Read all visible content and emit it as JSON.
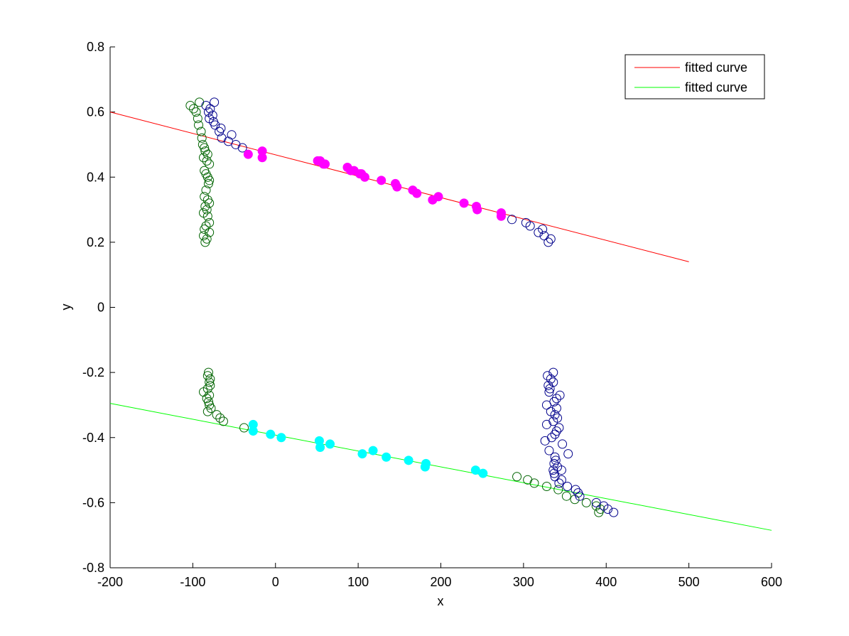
{
  "chart_data": {
    "type": "scatter",
    "title": "",
    "xlabel": "x",
    "ylabel": "y",
    "xlim": [
      -200,
      600
    ],
    "ylim": [
      -0.8,
      0.8
    ],
    "xticks": [
      -200,
      -100,
      0,
      100,
      200,
      300,
      400,
      500,
      600
    ],
    "xtick_labels": [
      "-200",
      "-100",
      "0",
      "100",
      "200",
      "300",
      "400",
      "500",
      "600"
    ],
    "yticks": [
      -0.8,
      -0.6,
      -0.4,
      -0.2,
      0,
      0.2,
      0.4,
      0.6,
      0.8
    ],
    "ytick_labels": [
      "-0.8",
      "-0.6",
      "-0.4",
      "-0.2",
      "0",
      "0.2",
      "0.4",
      "0.6",
      "0.8"
    ],
    "grid": false,
    "legend": {
      "position": "top-right",
      "entries": [
        {
          "label": "fitted curve",
          "color": "#ff0000"
        },
        {
          "label": "fitted curve",
          "color": "#00ff00"
        }
      ]
    },
    "lines": [
      {
        "name": "fitted curve",
        "color": "#ff0000",
        "x": [
          -200,
          500
        ],
        "y": [
          0.6,
          0.14
        ]
      },
      {
        "name": "fitted curve",
        "color": "#00ff00",
        "x": [
          -200,
          600
        ],
        "y": [
          -0.295,
          -0.685
        ]
      }
    ],
    "series": [
      {
        "marker": "open-circle",
        "color": "#006400",
        "points": [
          [
            -103,
            0.62
          ],
          [
            -99,
            0.61
          ],
          [
            -96,
            0.6
          ],
          [
            -94,
            0.58
          ],
          [
            -93,
            0.56
          ],
          [
            -92,
            0.63
          ],
          [
            -90,
            0.54
          ],
          [
            -89,
            0.52
          ],
          [
            -88,
            0.5
          ],
          [
            -86,
            0.49
          ],
          [
            -85,
            0.48
          ],
          [
            -82,
            0.47
          ],
          [
            -87,
            0.46
          ],
          [
            -83,
            0.45
          ],
          [
            -80,
            0.44
          ],
          [
            -86,
            0.42
          ],
          [
            -84,
            0.41
          ],
          [
            -82,
            0.4
          ],
          [
            -80,
            0.39
          ],
          [
            -81,
            0.38
          ],
          [
            -84,
            0.36
          ],
          [
            -86,
            0.34
          ],
          [
            -82,
            0.33
          ],
          [
            -80,
            0.32
          ],
          [
            -85,
            0.31
          ],
          [
            -83,
            0.3
          ],
          [
            -87,
            0.29
          ],
          [
            -82,
            0.28
          ],
          [
            -80,
            0.26
          ],
          [
            -84,
            0.25
          ],
          [
            -86,
            0.24
          ],
          [
            -80,
            0.23
          ],
          [
            -87,
            0.22
          ],
          [
            -83,
            0.21
          ],
          [
            -85,
            0.2
          ],
          [
            -81,
            -0.2
          ],
          [
            -82,
            -0.21
          ],
          [
            -79,
            -0.22
          ],
          [
            -80,
            -0.23
          ],
          [
            -79,
            -0.24
          ],
          [
            -82,
            -0.25
          ],
          [
            -87,
            -0.26
          ],
          [
            -80,
            -0.27
          ],
          [
            -83,
            -0.28
          ],
          [
            -81,
            -0.29
          ],
          [
            -80,
            -0.3
          ],
          [
            -78,
            -0.31
          ],
          [
            -82,
            -0.32
          ],
          [
            -71,
            -0.33
          ],
          [
            -67,
            -0.34
          ],
          [
            -63,
            -0.35
          ],
          [
            -38,
            -0.37
          ],
          [
            292,
            -0.52
          ],
          [
            305,
            -0.53
          ],
          [
            313,
            -0.54
          ],
          [
            328,
            -0.55
          ],
          [
            342,
            -0.56
          ],
          [
            352,
            -0.58
          ],
          [
            362,
            -0.59
          ],
          [
            376,
            -0.6
          ],
          [
            388,
            -0.61
          ],
          [
            393,
            -0.62
          ],
          [
            391,
            -0.63
          ]
        ]
      },
      {
        "marker": "open-circle",
        "color": "#00008b",
        "points": [
          [
            -74,
            0.63
          ],
          [
            -84,
            0.62
          ],
          [
            -79,
            0.61
          ],
          [
            -81,
            0.6
          ],
          [
            -76,
            0.59
          ],
          [
            -80,
            0.58
          ],
          [
            -75,
            0.57
          ],
          [
            -73,
            0.56
          ],
          [
            -66,
            0.55
          ],
          [
            -68,
            0.54
          ],
          [
            -53,
            0.53
          ],
          [
            -65,
            0.52
          ],
          [
            -57,
            0.51
          ],
          [
            -48,
            0.5
          ],
          [
            -40,
            0.49
          ],
          [
            286,
            0.27
          ],
          [
            303,
            0.26
          ],
          [
            308,
            0.25
          ],
          [
            323,
            0.24
          ],
          [
            318,
            0.23
          ],
          [
            325,
            0.22
          ],
          [
            333,
            0.21
          ],
          [
            330,
            0.2
          ],
          [
            336,
            -0.2
          ],
          [
            329,
            -0.21
          ],
          [
            333,
            -0.22
          ],
          [
            336,
            -0.23
          ],
          [
            330,
            -0.24
          ],
          [
            332,
            -0.25
          ],
          [
            331,
            -0.26
          ],
          [
            344,
            -0.27
          ],
          [
            340,
            -0.28
          ],
          [
            337,
            -0.29
          ],
          [
            328,
            -0.3
          ],
          [
            340,
            -0.31
          ],
          [
            333,
            -0.32
          ],
          [
            338,
            -0.33
          ],
          [
            341,
            -0.34
          ],
          [
            336,
            -0.35
          ],
          [
            328,
            -0.36
          ],
          [
            343,
            -0.37
          ],
          [
            340,
            -0.38
          ],
          [
            338,
            -0.39
          ],
          [
            334,
            -0.4
          ],
          [
            326,
            -0.41
          ],
          [
            347,
            -0.42
          ],
          [
            331,
            -0.44
          ],
          [
            354,
            -0.45
          ],
          [
            338,
            -0.46
          ],
          [
            339,
            -0.47
          ],
          [
            337,
            -0.48
          ],
          [
            341,
            -0.49
          ],
          [
            336,
            -0.5
          ],
          [
            346,
            -0.5
          ],
          [
            337,
            -0.51
          ],
          [
            338,
            -0.52
          ],
          [
            346,
            -0.53
          ],
          [
            343,
            -0.54
          ],
          [
            353,
            -0.55
          ],
          [
            363,
            -0.56
          ],
          [
            366,
            -0.57
          ],
          [
            368,
            -0.58
          ],
          [
            388,
            -0.6
          ],
          [
            397,
            -0.61
          ],
          [
            402,
            -0.62
          ],
          [
            409,
            -0.63
          ]
        ]
      },
      {
        "marker": "filled-circle",
        "color": "#ff00ff",
        "points": [
          [
            -33,
            0.47
          ],
          [
            -16,
            0.48
          ],
          [
            -16,
            0.46
          ],
          [
            51,
            0.45
          ],
          [
            54,
            0.45
          ],
          [
            58,
            0.44
          ],
          [
            60,
            0.44
          ],
          [
            87,
            0.43
          ],
          [
            91,
            0.42
          ],
          [
            95,
            0.42
          ],
          [
            102,
            0.41
          ],
          [
            104,
            0.41
          ],
          [
            108,
            0.4
          ],
          [
            128,
            0.39
          ],
          [
            145,
            0.38
          ],
          [
            147,
            0.37
          ],
          [
            166,
            0.36
          ],
          [
            171,
            0.35
          ],
          [
            190,
            0.33
          ],
          [
            197,
            0.34
          ],
          [
            228,
            0.32
          ],
          [
            243,
            0.31
          ],
          [
            244,
            0.3
          ],
          [
            273,
            0.29
          ],
          [
            273,
            0.28
          ]
        ]
      },
      {
        "marker": "filled-circle",
        "color": "#00ffff",
        "points": [
          [
            -27,
            -0.36
          ],
          [
            -27,
            -0.38
          ],
          [
            -6,
            -0.39
          ],
          [
            7,
            -0.4
          ],
          [
            53,
            -0.41
          ],
          [
            54,
            -0.43
          ],
          [
            66,
            -0.42
          ],
          [
            105,
            -0.45
          ],
          [
            118,
            -0.44
          ],
          [
            134,
            -0.46
          ],
          [
            161,
            -0.47
          ],
          [
            182,
            -0.48
          ],
          [
            181,
            -0.49
          ],
          [
            242,
            -0.5
          ],
          [
            251,
            -0.51
          ]
        ]
      }
    ]
  }
}
